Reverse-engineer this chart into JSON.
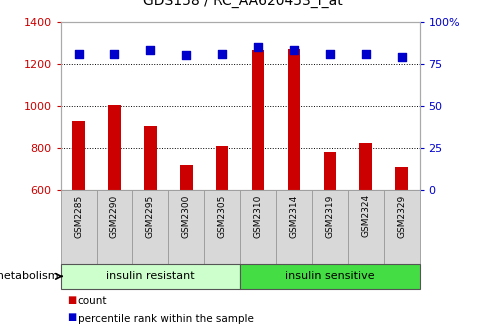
{
  "title": "GDS158 / RC_AA620453_i_at",
  "categories": [
    "GSM2285",
    "GSM2290",
    "GSM2295",
    "GSM2300",
    "GSM2305",
    "GSM2310",
    "GSM2314",
    "GSM2319",
    "GSM2324",
    "GSM2329"
  ],
  "counts": [
    930,
    1005,
    905,
    720,
    810,
    1265,
    1270,
    780,
    825,
    710
  ],
  "percentile_ranks": [
    81,
    81,
    83,
    80,
    81,
    85,
    83,
    81,
    81,
    79
  ],
  "bar_color": "#cc0000",
  "dot_color": "#0000cc",
  "ylim_left": [
    600,
    1400
  ],
  "ylim_right": [
    0,
    100
  ],
  "yticks_left": [
    600,
    800,
    1000,
    1200,
    1400
  ],
  "yticks_right": [
    0,
    25,
    50,
    75,
    100
  ],
  "groups": [
    {
      "label": "insulin resistant",
      "start": 0,
      "end": 5,
      "color": "#ccffcc"
    },
    {
      "label": "insulin sensitive",
      "start": 5,
      "end": 10,
      "color": "#44dd44"
    }
  ],
  "group_row_label": "metabolism",
  "legend_count_label": "count",
  "legend_pct_label": "percentile rank within the sample",
  "tick_label_color_left": "#cc0000",
  "tick_label_color_right": "#0000cc",
  "bar_width": 0.35,
  "dot_size": 40,
  "dot_marker": "s",
  "title_fontsize": 10
}
